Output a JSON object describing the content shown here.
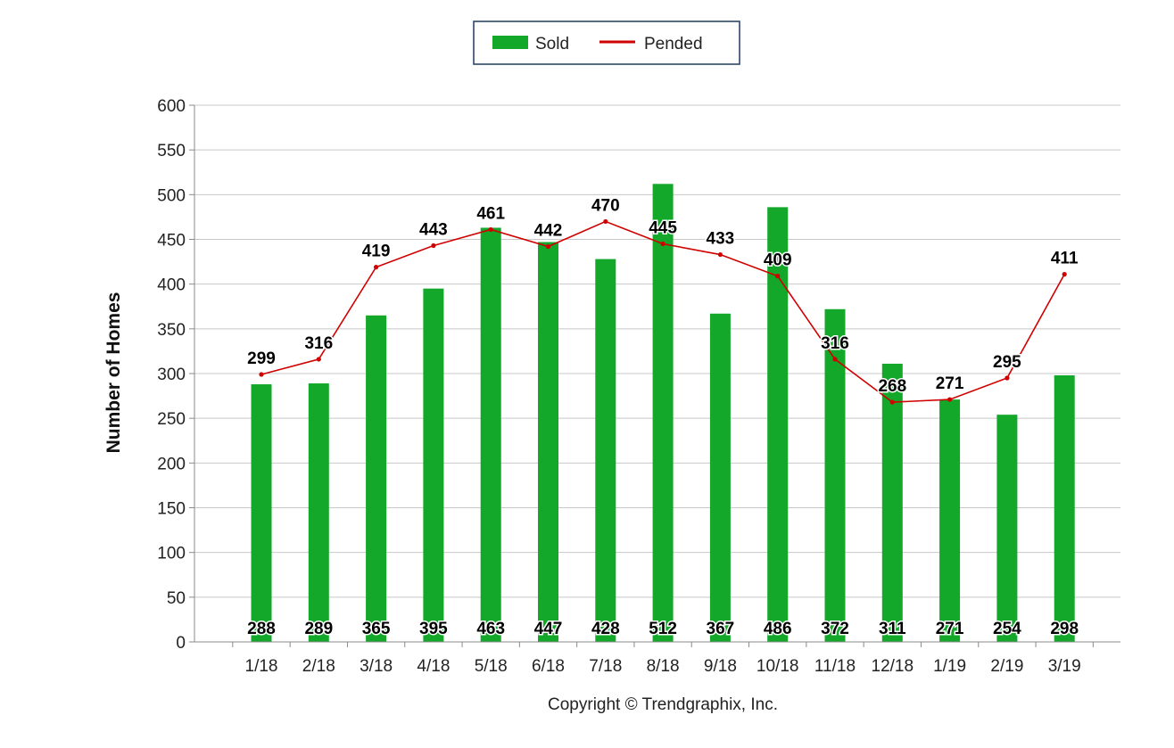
{
  "chart_data": {
    "type": "bar",
    "categories": [
      "1/18",
      "2/18",
      "3/18",
      "4/18",
      "5/18",
      "6/18",
      "7/18",
      "8/18",
      "9/18",
      "10/18",
      "11/18",
      "12/18",
      "1/19",
      "2/19",
      "3/19"
    ],
    "series": [
      {
        "name": "Sold",
        "type": "bar",
        "color": "#13a82a",
        "values": [
          288,
          289,
          365,
          395,
          463,
          447,
          428,
          512,
          367,
          486,
          372,
          311,
          271,
          254,
          298
        ]
      },
      {
        "name": "Pended",
        "type": "line",
        "color": "#d00000",
        "values": [
          299,
          316,
          419,
          443,
          461,
          442,
          470,
          445,
          433,
          409,
          316,
          268,
          271,
          295,
          411
        ]
      }
    ],
    "ylabel": "Number of Homes",
    "ylim": [
      0,
      600
    ],
    "yticks": [
      0,
      50,
      100,
      150,
      200,
      250,
      300,
      350,
      400,
      450,
      500,
      550,
      600
    ],
    "grid": true,
    "legend": "top-center"
  },
  "footer": {
    "copyright": "Copyright © Trendgraphix, Inc."
  }
}
